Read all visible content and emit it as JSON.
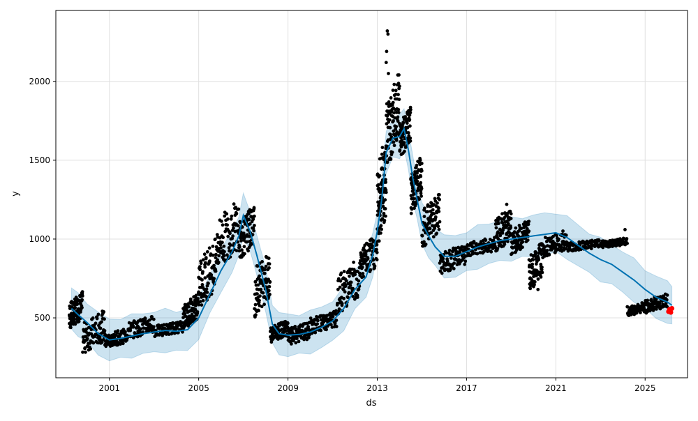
{
  "chart_data": {
    "type": "scatter",
    "title": "",
    "xlabel": "ds",
    "ylabel": "y",
    "xlim": [
      1998.6,
      2026.9
    ],
    "ylim": [
      120,
      2450
    ],
    "x_ticks": [
      2001,
      2005,
      2009,
      2013,
      2017,
      2021,
      2025
    ],
    "x_tick_labels": [
      "2001",
      "2005",
      "2009",
      "2013",
      "2017",
      "2021",
      "2025"
    ],
    "y_ticks": [
      500,
      1000,
      1500,
      2000
    ],
    "y_tick_labels": [
      "500",
      "1000",
      "1500",
      "2000"
    ],
    "grid": true,
    "colors": {
      "observed": "#000000",
      "forecast": "#0072B2",
      "interval": "#0072B2",
      "highlight": "#ff0000"
    },
    "forecast_line": {
      "x": [
        1999.3,
        1999.6,
        2000.0,
        2000.5,
        2001.0,
        2001.5,
        2002.0,
        2002.5,
        2003.0,
        2003.5,
        2004.0,
        2004.5,
        2005.0,
        2005.5,
        2006.0,
        2006.5,
        2006.8,
        2007.0,
        2007.3,
        2007.6,
        2008.0,
        2008.3,
        2008.6,
        2009.0,
        2009.5,
        2010.0,
        2010.5,
        2011.0,
        2011.5,
        2012.0,
        2012.5,
        2012.8,
        2013.0,
        2013.2,
        2013.4,
        2013.7,
        2014.0,
        2014.2,
        2014.4,
        2014.6,
        2014.8,
        2015.0,
        2015.3,
        2015.6,
        2016.0,
        2016.5,
        2017.0,
        2017.5,
        2018.0,
        2018.5,
        2019.0,
        2019.5,
        2020.0,
        2020.5,
        2021.0,
        2021.5,
        2022.0,
        2022.5,
        2023.0,
        2023.5,
        2024.0,
        2024.5,
        2025.0,
        2025.5,
        2026.0,
        2026.2
      ],
      "y": [
        560,
        520,
        470,
        400,
        360,
        370,
        385,
        400,
        410,
        420,
        415,
        425,
        500,
        650,
        800,
        920,
        1020,
        1150,
        1050,
        900,
        680,
        460,
        400,
        390,
        395,
        410,
        440,
        480,
        560,
        680,
        760,
        900,
        1050,
        1250,
        1550,
        1640,
        1650,
        1700,
        1560,
        1380,
        1240,
        1100,
        1020,
        950,
        890,
        890,
        920,
        950,
        970,
        990,
        1000,
        1010,
        1020,
        1030,
        1040,
        1010,
        960,
        910,
        870,
        840,
        790,
        740,
        680,
        630,
        600,
        580
      ]
    },
    "interval_width": 130,
    "observed_clusters": [
      {
        "x": [
          1999.2,
          1999.8
        ],
        "y": [
          450,
          640
        ]
      },
      {
        "x": [
          1999.8,
          2000.8
        ],
        "y": [
          300,
          520
        ]
      },
      {
        "x": [
          2000.8,
          2001.8
        ],
        "y": [
          320,
          420
        ]
      },
      {
        "x": [
          2001.8,
          2003.0
        ],
        "y": [
          380,
          500
        ]
      },
      {
        "x": [
          2003.0,
          2004.3
        ],
        "y": [
          390,
          470
        ]
      },
      {
        "x": [
          2004.3,
          2005.0
        ],
        "y": [
          450,
          640
        ]
      },
      {
        "x": [
          2005.0,
          2005.8
        ],
        "y": [
          600,
          960
        ]
      },
      {
        "x": [
          2005.8,
          2006.8
        ],
        "y": [
          850,
          1210
        ]
      },
      {
        "x": [
          2006.8,
          2007.5
        ],
        "y": [
          900,
          1180
        ]
      },
      {
        "x": [
          2007.5,
          2008.2
        ],
        "y": [
          550,
          900
        ]
      },
      {
        "x": [
          2008.2,
          2009.0
        ],
        "y": [
          360,
          470
        ]
      },
      {
        "x": [
          2009.0,
          2010.0
        ],
        "y": [
          340,
          460
        ]
      },
      {
        "x": [
          2010.0,
          2011.2
        ],
        "y": [
          410,
          530
        ]
      },
      {
        "x": [
          2011.2,
          2012.2
        ],
        "y": [
          560,
          840
        ]
      },
      {
        "x": [
          2012.2,
          2013.0
        ],
        "y": [
          760,
          1000
        ]
      },
      {
        "x": [
          2013.0,
          2013.4
        ],
        "y": [
          1000,
          1600
        ]
      },
      {
        "x": [
          2013.4,
          2014.0
        ],
        "y": [
          1500,
          2000
        ]
      },
      {
        "x": [
          2014.0,
          2014.5
        ],
        "y": [
          1550,
          1800
        ]
      },
      {
        "x": [
          2014.5,
          2015.0
        ],
        "y": [
          1200,
          1500
        ]
      },
      {
        "x": [
          2015.0,
          2015.8
        ],
        "y": [
          980,
          1250
        ]
      },
      {
        "x": [
          2015.8,
          2017.0
        ],
        "y": [
          800,
          950
        ]
      },
      {
        "x": [
          2017.0,
          2018.3
        ],
        "y": [
          900,
          1000
        ]
      },
      {
        "x": [
          2018.3,
          2019.0
        ],
        "y": [
          940,
          1180
        ]
      },
      {
        "x": [
          2019.0,
          2019.8
        ],
        "y": [
          920,
          1100
        ]
      },
      {
        "x": [
          2019.8,
          2020.4
        ],
        "y": [
          700,
          950
        ]
      },
      {
        "x": [
          2020.4,
          2021.5
        ],
        "y": [
          900,
          1040
        ]
      },
      {
        "x": [
          2021.5,
          2023.0
        ],
        "y": [
          930,
          990
        ]
      },
      {
        "x": [
          2023.0,
          2024.2
        ],
        "y": [
          950,
          1000
        ]
      },
      {
        "x": [
          2024.2,
          2025.0
        ],
        "y": [
          520,
          590
        ]
      },
      {
        "x": [
          2025.0,
          2026.0
        ],
        "y": [
          540,
          640
        ]
      }
    ],
    "outliers": [
      {
        "x": 2013.45,
        "y": 2320
      },
      {
        "x": 2013.48,
        "y": 2300
      },
      {
        "x": 2013.42,
        "y": 2190
      },
      {
        "x": 2013.4,
        "y": 2120
      },
      {
        "x": 2013.5,
        "y": 2050
      },
      {
        "x": 2024.1,
        "y": 1060
      },
      {
        "x": 2020.2,
        "y": 680
      },
      {
        "x": 2018.8,
        "y": 1220
      }
    ],
    "highlight_points": [
      {
        "x": 2026.05,
        "y": 540
      },
      {
        "x": 2026.1,
        "y": 555
      },
      {
        "x": 2026.15,
        "y": 535
      },
      {
        "x": 2026.2,
        "y": 560
      }
    ]
  }
}
